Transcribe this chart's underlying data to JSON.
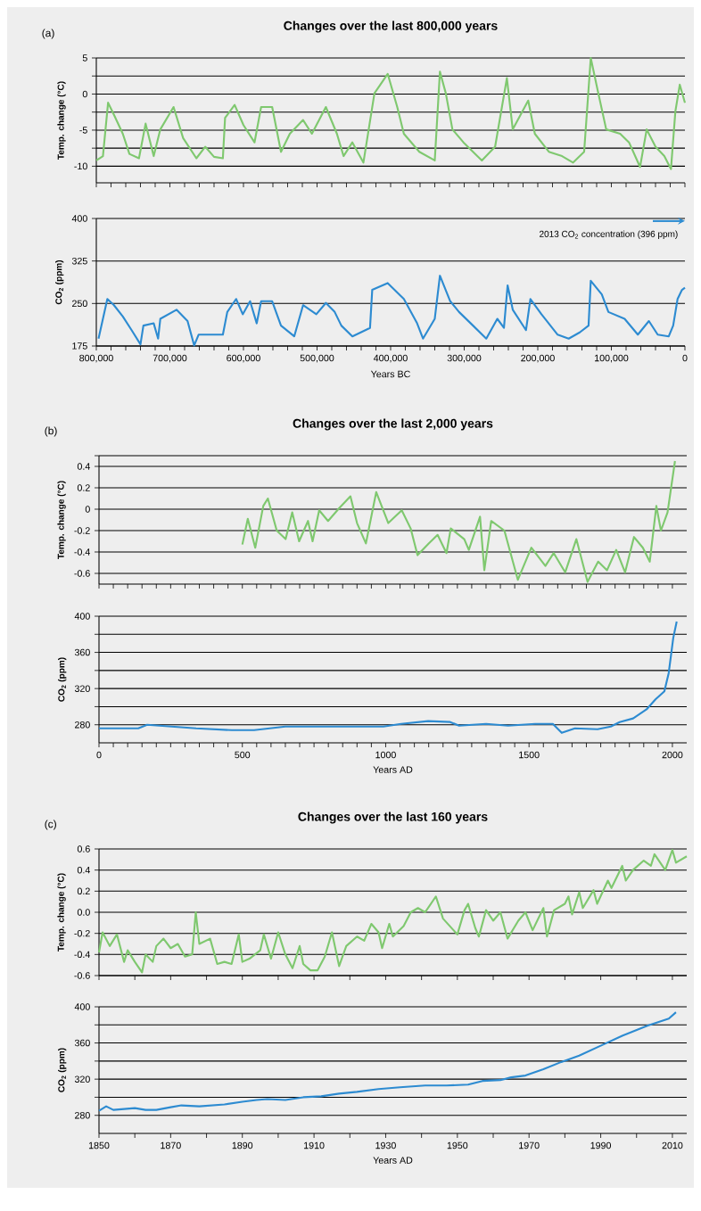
{
  "chart_data": [
    {
      "type": "line",
      "title": "Changes over the last 800,000 years",
      "annotations": [
        "(a)"
      ],
      "ylabel": "Temp. change (°C)",
      "color": "#7fc86f",
      "x": [
        800000,
        791000,
        784000,
        775000,
        764000,
        755000,
        742000,
        733000,
        722000,
        713000,
        695000,
        682000,
        664000,
        652000,
        640000,
        628000,
        625000,
        612000,
        600000,
        585000,
        576000,
        561000,
        549000,
        537000,
        519000,
        507000,
        488000,
        473000,
        464000,
        452000,
        437000,
        422000,
        404000,
        391000,
        382000,
        361000,
        340000,
        333000,
        325000,
        316000,
        301000,
        276000,
        258000,
        242000,
        234000,
        213000,
        204000,
        185000,
        167000,
        152000,
        137000,
        128000,
        119000,
        107000,
        88000,
        76000,
        61000,
        52000,
        40000,
        28000,
        19000,
        13000,
        7000,
        0
      ],
      "values": [
        -9.2,
        -8.6,
        -1.2,
        -3.1,
        -5.5,
        -8.3,
        -8.9,
        -4.1,
        -8.6,
        -4.9,
        -1.8,
        -6.1,
        -8.9,
        -7.3,
        -8.7,
        -8.9,
        -3.3,
        -1.5,
        -4.3,
        -6.7,
        -1.8,
        -1.8,
        -8.0,
        -5.5,
        -3.6,
        -5.5,
        -1.8,
        -5.5,
        -8.6,
        -6.7,
        -9.5,
        0.1,
        2.8,
        -1.8,
        -5.5,
        -8.0,
        -9.2,
        3.1,
        0.1,
        -4.9,
        -6.7,
        -9.2,
        -7.3,
        2.2,
        -4.9,
        -0.9,
        -5.5,
        -8.0,
        -8.6,
        -9.5,
        -8.0,
        5.0,
        0.7,
        -4.9,
        -5.5,
        -6.7,
        -10.1,
        -4.9,
        -7.3,
        -8.6,
        -10.4,
        -2.4,
        1.3,
        -1.2
      ],
      "xlim": [
        800000,
        0
      ],
      "ylim": [
        -12.3,
        5
      ],
      "xticks": [
        {
          "value": 800000,
          "label": null
        },
        {
          "value": 780000,
          "label": null
        },
        {
          "value": 760000,
          "label": null
        },
        {
          "value": 740000,
          "label": null
        },
        {
          "value": 720000,
          "label": null
        },
        {
          "value": 700000,
          "label": null
        },
        {
          "value": 680000,
          "label": null
        },
        {
          "value": 660000,
          "label": null
        },
        {
          "value": 640000,
          "label": null
        },
        {
          "value": 620000,
          "label": null
        },
        {
          "value": 600000,
          "label": null
        },
        {
          "value": 580000,
          "label": null
        },
        {
          "value": 560000,
          "label": null
        },
        {
          "value": 540000,
          "label": null
        },
        {
          "value": 520000,
          "label": null
        },
        {
          "value": 500000,
          "label": null
        },
        {
          "value": 480000,
          "label": null
        },
        {
          "value": 460000,
          "label": null
        },
        {
          "value": 440000,
          "label": null
        },
        {
          "value": 420000,
          "label": null
        },
        {
          "value": 400000,
          "label": null
        },
        {
          "value": 380000,
          "label": null
        },
        {
          "value": 360000,
          "label": null
        },
        {
          "value": 340000,
          "label": null
        },
        {
          "value": 320000,
          "label": null
        },
        {
          "value": 300000,
          "label": null
        },
        {
          "value": 280000,
          "label": null
        },
        {
          "value": 260000,
          "label": null
        },
        {
          "value": 240000,
          "label": null
        },
        {
          "value": 220000,
          "label": null
        },
        {
          "value": 200000,
          "label": null
        },
        {
          "value": 180000,
          "label": null
        },
        {
          "value": 160000,
          "label": null
        },
        {
          "value": 140000,
          "label": null
        },
        {
          "value": 120000,
          "label": null
        },
        {
          "value": 100000,
          "label": null
        },
        {
          "value": 80000,
          "label": null
        },
        {
          "value": 60000,
          "label": null
        },
        {
          "value": 40000,
          "label": null
        },
        {
          "value": 20000,
          "label": null
        },
        {
          "value": 0,
          "label": null
        }
      ],
      "yticks": [
        5,
        {
          "value": 2.5,
          "label": null
        },
        0,
        {
          "value": -2.5,
          "label": null
        },
        -5,
        {
          "value": -7.5,
          "label": null
        },
        -10
      ],
      "grid": "y",
      "tick_labels": "y"
    },
    {
      "type": "line",
      "xlabel": "Years BC",
      "ylabel": "CO$_{2}$ (ppm)",
      "color": "#2d8bd1",
      "annotations": [
        "2013 CO$_{2}$ concentration (396 ppm)"
      ],
      "x": [
        797000,
        785000,
        776000,
        764000,
        752000,
        740000,
        736000,
        722000,
        716000,
        713000,
        691000,
        676000,
        667000,
        661000,
        628000,
        622000,
        610000,
        601000,
        591000,
        582000,
        576000,
        561000,
        549000,
        531000,
        519000,
        501000,
        488000,
        476000,
        467000,
        452000,
        428000,
        425000,
        404000,
        382000,
        364000,
        356000,
        340000,
        333000,
        319000,
        307000,
        288000,
        270000,
        255000,
        246000,
        241000,
        234000,
        216000,
        210000,
        195000,
        173000,
        158000,
        143000,
        131000,
        128000,
        113000,
        104000,
        82000,
        64000,
        49000,
        37000,
        22000,
        16000,
        10000,
        4000,
        0
      ],
      "values": [
        188,
        258,
        247,
        227,
        203,
        178,
        211,
        215,
        188,
        223,
        239,
        219,
        176,
        195,
        195,
        235,
        258,
        231,
        254,
        215,
        254,
        254,
        211,
        192,
        247,
        231,
        251,
        235,
        211,
        192,
        207,
        274,
        286,
        258,
        215,
        188,
        223,
        299,
        254,
        235,
        211,
        188,
        223,
        207,
        282,
        239,
        203,
        258,
        231,
        195,
        188,
        199,
        211,
        290,
        266,
        235,
        223,
        195,
        219,
        195,
        192,
        211,
        258,
        274,
        278
      ],
      "xlim": [
        800000,
        0
      ],
      "ylim": [
        175,
        400
      ],
      "xticks": [
        {
          "value": 800000,
          "label": "800,000"
        },
        {
          "value": 780000,
          "label": null
        },
        {
          "value": 760000,
          "label": null
        },
        {
          "value": 740000,
          "label": null
        },
        {
          "value": 720000,
          "label": null
        },
        {
          "value": 700000,
          "label": "700,000"
        },
        {
          "value": 680000,
          "label": null
        },
        {
          "value": 660000,
          "label": null
        },
        {
          "value": 640000,
          "label": null
        },
        {
          "value": 620000,
          "label": null
        },
        {
          "value": 600000,
          "label": "600,000"
        },
        {
          "value": 580000,
          "label": null
        },
        {
          "value": 560000,
          "label": null
        },
        {
          "value": 540000,
          "label": null
        },
        {
          "value": 520000,
          "label": null
        },
        {
          "value": 500000,
          "label": "500,000"
        },
        {
          "value": 480000,
          "label": null
        },
        {
          "value": 460000,
          "label": null
        },
        {
          "value": 440000,
          "label": null
        },
        {
          "value": 420000,
          "label": null
        },
        {
          "value": 400000,
          "label": "400,000"
        },
        {
          "value": 380000,
          "label": null
        },
        {
          "value": 360000,
          "label": null
        },
        {
          "value": 340000,
          "label": null
        },
        {
          "value": 320000,
          "label": null
        },
        {
          "value": 300000,
          "label": "300,000"
        },
        {
          "value": 280000,
          "label": null
        },
        {
          "value": 260000,
          "label": null
        },
        {
          "value": 240000,
          "label": null
        },
        {
          "value": 220000,
          "label": null
        },
        {
          "value": 200000,
          "label": "200,000"
        },
        {
          "value": 180000,
          "label": null
        },
        {
          "value": 160000,
          "label": null
        },
        {
          "value": 140000,
          "label": null
        },
        {
          "value": 120000,
          "label": null
        },
        {
          "value": 100000,
          "label": "100,000"
        },
        {
          "value": 80000,
          "label": null
        },
        {
          "value": 60000,
          "label": null
        },
        {
          "value": 40000,
          "label": null
        },
        {
          "value": 20000,
          "label": null
        },
        0
      ],
      "yticks": [
        175,
        250,
        325,
        400
      ],
      "grid": "y"
    },
    {
      "type": "line",
      "title": "Changes over the last 2,000 years",
      "annotations": [
        "(b)"
      ],
      "ylabel": "Temp. change (°C)",
      "color": "#7fc86f",
      "x": [
        500,
        519,
        545,
        573,
        589,
        620,
        651,
        674,
        698,
        729,
        745,
        768,
        799,
        838,
        877,
        900,
        931,
        967,
        1009,
        1056,
        1087,
        1111,
        1150,
        1181,
        1212,
        1227,
        1274,
        1290,
        1329,
        1344,
        1368,
        1414,
        1461,
        1508,
        1557,
        1586,
        1626,
        1665,
        1704,
        1741,
        1772,
        1804,
        1835,
        1866,
        1897,
        1921,
        1944,
        1960,
        1983,
        2009
      ],
      "values": [
        -0.33,
        -0.09,
        -0.36,
        0.03,
        0.1,
        -0.2,
        -0.28,
        -0.03,
        -0.3,
        -0.11,
        -0.3,
        -0.01,
        -0.11,
        0.01,
        0.12,
        -0.13,
        -0.32,
        0.16,
        -0.13,
        -0.01,
        -0.18,
        -0.43,
        -0.32,
        -0.24,
        -0.41,
        -0.18,
        -0.28,
        -0.38,
        -0.07,
        -0.57,
        -0.11,
        -0.2,
        -0.66,
        -0.36,
        -0.53,
        -0.41,
        -0.59,
        -0.28,
        -0.68,
        -0.49,
        -0.57,
        -0.38,
        -0.59,
        -0.26,
        -0.36,
        -0.49,
        0.03,
        -0.2,
        -0.03,
        0.45
      ],
      "xlim": [
        0,
        2050
      ],
      "ylim": [
        -0.7,
        0.5
      ],
      "xticks": [
        {
          "value": 0,
          "label": null
        },
        {
          "value": 50,
          "label": null
        },
        {
          "value": 100,
          "label": null
        },
        {
          "value": 150,
          "label": null
        },
        {
          "value": 200,
          "label": null
        },
        {
          "value": 250,
          "label": null
        },
        {
          "value": 300,
          "label": null
        },
        {
          "value": 350,
          "label": null
        },
        {
          "value": 400,
          "label": null
        },
        {
          "value": 450,
          "label": null
        },
        {
          "value": 500,
          "label": null
        },
        {
          "value": 550,
          "label": null
        },
        {
          "value": 600,
          "label": null
        },
        {
          "value": 650,
          "label": null
        },
        {
          "value": 700,
          "label": null
        },
        {
          "value": 750,
          "label": null
        },
        {
          "value": 800,
          "label": null
        },
        {
          "value": 850,
          "label": null
        },
        {
          "value": 900,
          "label": null
        },
        {
          "value": 950,
          "label": null
        },
        {
          "value": 1000,
          "label": null
        },
        {
          "value": 1050,
          "label": null
        },
        {
          "value": 1100,
          "label": null
        },
        {
          "value": 1150,
          "label": null
        },
        {
          "value": 1200,
          "label": null
        },
        {
          "value": 1250,
          "label": null
        },
        {
          "value": 1300,
          "label": null
        },
        {
          "value": 1350,
          "label": null
        },
        {
          "value": 1400,
          "label": null
        },
        {
          "value": 1450,
          "label": null
        },
        {
          "value": 1500,
          "label": null
        },
        {
          "value": 1550,
          "label": null
        },
        {
          "value": 1600,
          "label": null
        },
        {
          "value": 1650,
          "label": null
        },
        {
          "value": 1700,
          "label": null
        },
        {
          "value": 1750,
          "label": null
        },
        {
          "value": 1800,
          "label": null
        },
        {
          "value": 1850,
          "label": null
        },
        {
          "value": 1900,
          "label": null
        },
        {
          "value": 1950,
          "label": null
        },
        {
          "value": 2000,
          "label": null
        }
      ],
      "yticks": [
        {
          "value": 0.5,
          "label": null
        },
        0.4,
        0.2,
        0,
        -0.2,
        -0.4,
        -0.6
      ],
      "grid": "y",
      "tick_labels": "y"
    },
    {
      "type": "line",
      "xlabel": "Years AD",
      "ylabel": "CO$_{2}$ (ppm)",
      "color": "#2d8bd1",
      "x": [
        0,
        137,
        168,
        339,
        463,
        541,
        650,
        992,
        1054,
        1148,
        1225,
        1256,
        1350,
        1427,
        1521,
        1583,
        1614,
        1660,
        1739,
        1785,
        1816,
        1863,
        1910,
        1941,
        1972,
        1987,
        2003,
        2015
      ],
      "values": [
        276,
        276,
        280,
        276,
        274,
        274,
        278,
        278,
        281,
        284,
        283,
        279,
        281,
        279,
        281,
        281,
        271,
        276,
        275,
        278,
        283,
        287,
        297,
        308,
        317,
        337,
        376,
        394
      ],
      "xlim": [
        0,
        2050
      ],
      "ylim": [
        260,
        400
      ],
      "xticks": [
        0,
        {
          "value": 50,
          "label": null
        },
        {
          "value": 100,
          "label": null
        },
        {
          "value": 150,
          "label": null
        },
        {
          "value": 200,
          "label": null
        },
        {
          "value": 250,
          "label": null
        },
        {
          "value": 300,
          "label": null
        },
        {
          "value": 350,
          "label": null
        },
        {
          "value": 400,
          "label": null
        },
        {
          "value": 450,
          "label": null
        },
        500,
        {
          "value": 550,
          "label": null
        },
        {
          "value": 600,
          "label": null
        },
        {
          "value": 650,
          "label": null
        },
        {
          "value": 700,
          "label": null
        },
        {
          "value": 750,
          "label": null
        },
        {
          "value": 800,
          "label": null
        },
        {
          "value": 850,
          "label": null
        },
        {
          "value": 900,
          "label": null
        },
        {
          "value": 950,
          "label": null
        },
        1000,
        {
          "value": 1050,
          "label": null
        },
        {
          "value": 1100,
          "label": null
        },
        {
          "value": 1150,
          "label": null
        },
        {
          "value": 1200,
          "label": null
        },
        {
          "value": 1250,
          "label": null
        },
        {
          "value": 1300,
          "label": null
        },
        {
          "value": 1350,
          "label": null
        },
        {
          "value": 1400,
          "label": null
        },
        {
          "value": 1450,
          "label": null
        },
        1500,
        {
          "value": 1550,
          "label": null
        },
        {
          "value": 1600,
          "label": null
        },
        {
          "value": 1650,
          "label": null
        },
        {
          "value": 1700,
          "label": null
        },
        {
          "value": 1750,
          "label": null
        },
        {
          "value": 1800,
          "label": null
        },
        {
          "value": 1850,
          "label": null
        },
        {
          "value": 1900,
          "label": null
        },
        {
          "value": 1950,
          "label": null
        },
        2000
      ],
      "yticks": [
        400,
        {
          "value": 380,
          "label": null
        },
        360,
        {
          "value": 340,
          "label": null
        },
        320,
        {
          "value": 300,
          "label": null
        },
        280
      ],
      "grid": "y"
    },
    {
      "type": "line",
      "title": "Changes over the last 160 years",
      "annotations": [
        "(c)"
      ],
      "ylabel": "Temp. change (°C)",
      "color": "#7fc86f",
      "x": [
        1850,
        1851,
        1853,
        1855,
        1857,
        1858,
        1860,
        1862,
        1863,
        1865,
        1866,
        1868,
        1870,
        1872,
        1874,
        1876,
        1877,
        1878,
        1881,
        1883,
        1885,
        1887,
        1889,
        1890,
        1892,
        1895,
        1896,
        1898,
        1900,
        1902,
        1904,
        1906,
        1907,
        1909,
        1911,
        1913,
        1915,
        1917,
        1919,
        1922,
        1924,
        1926,
        1928,
        1929,
        1931,
        1932,
        1935,
        1937,
        1939,
        1941,
        1944,
        1946,
        1950,
        1952,
        1953,
        1955,
        1956,
        1958,
        1960,
        1962,
        1964,
        1967,
        1969,
        1971,
        1974,
        1975,
        1977,
        1980,
        1981,
        1982,
        1984,
        1985,
        1988,
        1989,
        1992,
        1993,
        1996,
        1997,
        1999,
        2002,
        2004,
        2005,
        2008,
        2010,
        2011,
        2014
      ],
      "values": [
        -0.38,
        -0.19,
        -0.32,
        -0.21,
        -0.47,
        -0.36,
        -0.47,
        -0.57,
        -0.4,
        -0.47,
        -0.32,
        -0.25,
        -0.34,
        -0.3,
        -0.42,
        -0.4,
        0.0,
        -0.3,
        -0.25,
        -0.49,
        -0.47,
        -0.49,
        -0.21,
        -0.47,
        -0.44,
        -0.36,
        -0.21,
        -0.44,
        -0.19,
        -0.4,
        -0.53,
        -0.32,
        -0.49,
        -0.55,
        -0.55,
        -0.42,
        -0.19,
        -0.51,
        -0.32,
        -0.23,
        -0.27,
        -0.11,
        -0.19,
        -0.34,
        -0.11,
        -0.23,
        -0.13,
        0.0,
        0.04,
        0.0,
        0.15,
        -0.06,
        -0.21,
        0.02,
        0.08,
        -0.15,
        -0.23,
        0.02,
        -0.08,
        0.0,
        -0.25,
        -0.08,
        0.0,
        -0.17,
        0.04,
        -0.23,
        0.02,
        0.08,
        0.15,
        -0.02,
        0.19,
        0.04,
        0.21,
        0.08,
        0.3,
        0.23,
        0.44,
        0.3,
        0.4,
        0.49,
        0.44,
        0.55,
        0.4,
        0.59,
        0.47,
        0.53
      ],
      "xlim": [
        1850,
        2014
      ],
      "ylim": [
        -0.6,
        0.6
      ],
      "xticks": [
        {
          "value": 1850,
          "label": null
        },
        {
          "value": 1860,
          "label": null
        },
        {
          "value": 1870,
          "label": null
        },
        {
          "value": 1880,
          "label": null
        },
        {
          "value": 1890,
          "label": null
        },
        {
          "value": 1900,
          "label": null
        },
        {
          "value": 1910,
          "label": null
        },
        {
          "value": 1920,
          "label": null
        },
        {
          "value": 1930,
          "label": null
        },
        {
          "value": 1940,
          "label": null
        },
        {
          "value": 1950,
          "label": null
        },
        {
          "value": 1960,
          "label": null
        },
        {
          "value": 1970,
          "label": null
        },
        {
          "value": 1980,
          "label": null
        },
        {
          "value": 1990,
          "label": null
        },
        {
          "value": 2000,
          "label": null
        },
        {
          "value": 2010,
          "label": null
        }
      ],
      "yticks": [
        0.6,
        0.4,
        0.2,
        {
          "value": 0,
          "label": "0.0"
        },
        -0.2,
        -0.4,
        -0.6
      ],
      "grid": "y",
      "tick_labels": "y"
    },
    {
      "type": "line",
      "xlabel": "Years AD",
      "ylabel": "CO$_{2}$ (ppm)",
      "color": "#2d8bd1",
      "x": [
        1850,
        1852,
        1854,
        1860,
        1863,
        1866,
        1870,
        1873,
        1878,
        1885,
        1890,
        1894,
        1897,
        1902,
        1907,
        1912,
        1917,
        1922,
        1928,
        1934,
        1941,
        1947,
        1953,
        1957,
        1962,
        1965,
        1969,
        1974,
        1979,
        1984,
        1990,
        1996,
        2003,
        2009,
        2011
      ],
      "values": [
        285,
        290,
        286,
        288,
        286,
        286,
        289,
        291,
        290,
        292,
        295,
        297,
        298,
        297,
        300,
        301,
        304,
        306,
        309,
        311,
        313,
        313,
        314,
        318,
        319,
        322,
        324,
        331,
        339,
        346,
        357,
        368,
        379,
        387,
        394
      ],
      "xlim": [
        1850,
        2014
      ],
      "ylim": [
        260,
        400
      ],
      "xticks": [
        1850,
        {
          "value": 1860,
          "label": null
        },
        1870,
        {
          "value": 1880,
          "label": null
        },
        1890,
        {
          "value": 1900,
          "label": null
        },
        1910,
        {
          "value": 1920,
          "label": null
        },
        1930,
        {
          "value": 1940,
          "label": null
        },
        1950,
        {
          "value": 1960,
          "label": null
        },
        1970,
        {
          "value": 1980,
          "label": null
        },
        1990,
        {
          "value": 2000,
          "label": null
        },
        2010
      ],
      "yticks": [
        400,
        {
          "value": 380,
          "label": null
        },
        360,
        {
          "value": 340,
          "label": null
        },
        320,
        {
          "value": 300,
          "label": null
        },
        280
      ],
      "grid": "y"
    }
  ]
}
